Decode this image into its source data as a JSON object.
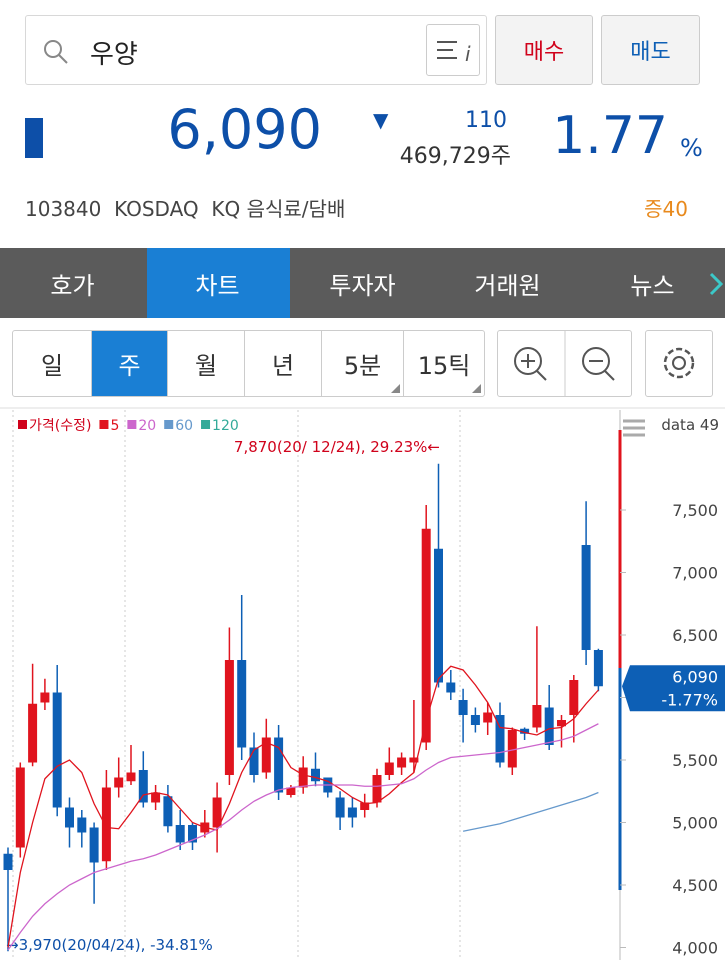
{
  "search": {
    "query": "우양"
  },
  "buttons": {
    "buy": "매수",
    "sell": "매도"
  },
  "quote": {
    "price": "6,090",
    "change_arrow": "▼",
    "change": "110",
    "volume": "469,729주",
    "change_pct": "1.77",
    "pct_unit": "%"
  },
  "info": {
    "code": "103840",
    "market": "KOSDAQ",
    "sector": "KQ 음식료/담배",
    "margin": "증40"
  },
  "tabs": [
    "호가",
    "차트",
    "투자자",
    "거래원",
    "뉴스"
  ],
  "periods": [
    "일",
    "주",
    "월",
    "년",
    "5분",
    "15틱"
  ],
  "chart_data": {
    "type": "candlestick",
    "legend": "top-left",
    "ylim": [
      3900,
      8300
    ],
    "yticks": [
      {
        "value": 4000,
        "label": "4,000"
      },
      {
        "value": 4500,
        "label": "4,500"
      },
      {
        "value": 5000,
        "label": "5,000"
      },
      {
        "value": 5500,
        "label": "5,500"
      },
      {
        "value": 6000,
        "label": "6,000"
      },
      {
        "value": 6500,
        "label": "6,500"
      },
      {
        "value": 7000,
        "label": "7,000"
      },
      {
        "value": 7500,
        "label": "7,500"
      }
    ],
    "data_count": "data 49",
    "annotations": {
      "high": "7,870(20/ 12/24), 29.23%←",
      "low": "→3,970(20/04/24), -34.81%"
    },
    "current": {
      "label": "6,090",
      "change": "-1.77%"
    },
    "series": [
      {
        "name": "가격(수정)",
        "color": "#d0021b",
        "color_up": "#e0141e",
        "color_down": "#0d5fb5",
        "open": [
          4750,
          4800,
          5480,
          5960,
          6040,
          5120,
          5040,
          4960,
          4690,
          5280,
          5330,
          5420,
          5160,
          5210,
          4980,
          4980,
          4920,
          4960,
          5380,
          6300,
          5600,
          5400,
          5680,
          5220,
          5280,
          5430,
          5360,
          5200,
          5120,
          5100,
          5160,
          5380,
          5440,
          5480,
          5640,
          7190,
          6120,
          5980,
          5860,
          5800,
          5860,
          5440,
          5750,
          5760,
          5920,
          5770,
          5860,
          7220,
          6380
        ],
        "high": [
          4800,
          5480,
          6270,
          6150,
          6260,
          5200,
          5100,
          5000,
          5420,
          5520,
          5620,
          5570,
          5300,
          5300,
          5100,
          5000,
          5100,
          5320,
          6560,
          6820,
          5720,
          5830,
          5780,
          5300,
          5530,
          5560,
          5360,
          5250,
          5200,
          5230,
          5430,
          5600,
          5560,
          5980,
          7540,
          7870,
          6220,
          6070,
          5920,
          5960,
          5960,
          5760,
          5760,
          6570,
          6100,
          5860,
          6180,
          7570,
          6390
        ],
        "low": [
          3970,
          4720,
          5450,
          5900,
          5050,
          4800,
          4800,
          4350,
          4620,
          5200,
          5300,
          5120,
          5100,
          4920,
          4780,
          4780,
          4880,
          4760,
          5300,
          5500,
          5320,
          5350,
          5180,
          5200,
          5230,
          5290,
          5200,
          4940,
          4960,
          5040,
          5120,
          5340,
          5380,
          5400,
          5580,
          6080,
          5980,
          5640,
          5720,
          5700,
          5440,
          5380,
          5660,
          5720,
          5580,
          5600,
          5640,
          6260,
          6050
        ],
        "close": [
          4620,
          5440,
          5950,
          6040,
          5120,
          4960,
          4920,
          4680,
          5280,
          5360,
          5400,
          5160,
          5240,
          4970,
          4840,
          4840,
          5000,
          5200,
          6300,
          5600,
          5380,
          5680,
          5240,
          5280,
          5440,
          5330,
          5240,
          5040,
          5040,
          5160,
          5380,
          5480,
          5520,
          5520,
          7350,
          6120,
          6040,
          5860,
          5780,
          5880,
          5480,
          5740,
          5710,
          5940,
          5620,
          5820,
          6140,
          6380,
          6090
        ]
      },
      {
        "name": "5",
        "color": "#e0141e",
        "values": [
          4000,
          4600,
          5000,
          5350,
          5450,
          5500,
          5400,
          5150,
          4960,
          4950,
          5080,
          5220,
          5240,
          5220,
          5110,
          5000,
          4960,
          4940,
          5150,
          5400,
          5580,
          5640,
          5600,
          5440,
          5380,
          5360,
          5330,
          5270,
          5200,
          5150,
          5160,
          5230,
          5320,
          5400,
          5820,
          6150,
          6250,
          6220,
          6100,
          5960,
          5760,
          5750,
          5720,
          5700,
          5750,
          5760,
          5830,
          5950,
          6060
        ]
      },
      {
        "name": "20",
        "color": "#cc66cc",
        "values": [
          3980,
          4120,
          4250,
          4350,
          4430,
          4500,
          4550,
          4600,
          4630,
          4660,
          4690,
          4710,
          4740,
          4780,
          4820,
          4860,
          4900,
          4950,
          5020,
          5100,
          5170,
          5220,
          5260,
          5280,
          5290,
          5300,
          5300,
          5300,
          5300,
          5290,
          5290,
          5300,
          5310,
          5350,
          5420,
          5480,
          5520,
          5530,
          5540,
          5550,
          5560,
          5580,
          5600,
          5620,
          5640,
          5660,
          5690,
          5740,
          5790
        ]
      },
      {
        "name": "60",
        "color": "#6699cc",
        "values": [
          null,
          null,
          null,
          null,
          null,
          null,
          null,
          null,
          null,
          null,
          null,
          null,
          null,
          null,
          null,
          null,
          null,
          null,
          null,
          null,
          null,
          null,
          null,
          null,
          null,
          null,
          null,
          null,
          null,
          null,
          null,
          null,
          null,
          null,
          null,
          null,
          null,
          4930,
          4950,
          4970,
          4990,
          5020,
          5050,
          5080,
          5110,
          5140,
          5170,
          5200,
          5240
        ]
      },
      {
        "name": "120",
        "color": "#33aa99"
      }
    ]
  }
}
